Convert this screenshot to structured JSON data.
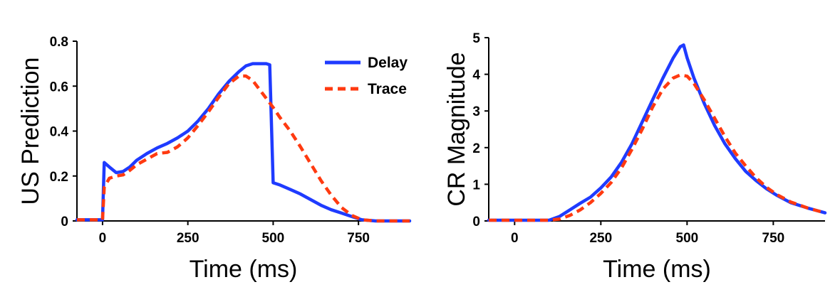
{
  "chart_data": [
    {
      "type": "line",
      "xlabel": "Time (ms)",
      "ylabel": "US Prediction",
      "xlim": [
        -75,
        900
      ],
      "ylim": [
        0,
        0.8
      ],
      "xticks": [
        0,
        250,
        500,
        750
      ],
      "xtick_labels": [
        "0",
        "250",
        "500",
        "750"
      ],
      "yticks": [
        0,
        0.2,
        0.4,
        0.6,
        0.8
      ],
      "ytick_labels": [
        "0",
        "0.2",
        "0.4",
        "0.6",
        "0.8"
      ],
      "grid": false,
      "legend": "top-right",
      "series": [
        {
          "name": "Delay",
          "color": "#1f3bff",
          "style": "solid",
          "x": [
            -75,
            -5,
            0,
            5,
            20,
            40,
            60,
            80,
            100,
            130,
            160,
            190,
            220,
            250,
            280,
            310,
            340,
            370,
            400,
            420,
            440,
            460,
            480,
            490,
            500,
            520,
            550,
            580,
            610,
            640,
            670,
            700,
            730,
            760,
            800,
            900
          ],
          "y": [
            0.005,
            0.005,
            0.005,
            0.26,
            0.24,
            0.215,
            0.22,
            0.24,
            0.27,
            0.3,
            0.325,
            0.345,
            0.37,
            0.4,
            0.445,
            0.5,
            0.565,
            0.62,
            0.665,
            0.69,
            0.7,
            0.7,
            0.7,
            0.695,
            0.17,
            0.16,
            0.14,
            0.12,
            0.095,
            0.07,
            0.05,
            0.035,
            0.02,
            0.005,
            0.0,
            0.0
          ]
        },
        {
          "name": "Trace",
          "color": "#ff3a10",
          "style": "dashed",
          "x": [
            -75,
            -5,
            0,
            5,
            20,
            40,
            60,
            80,
            100,
            130,
            160,
            190,
            220,
            250,
            280,
            310,
            340,
            370,
            400,
            420,
            440,
            460,
            480,
            500,
            520,
            550,
            580,
            610,
            640,
            670,
            700,
            730,
            760,
            800,
            900
          ],
          "y": [
            0.005,
            0.005,
            0.005,
            0.15,
            0.19,
            0.2,
            0.205,
            0.225,
            0.25,
            0.275,
            0.3,
            0.305,
            0.33,
            0.37,
            0.425,
            0.485,
            0.55,
            0.61,
            0.645,
            0.645,
            0.625,
            0.585,
            0.545,
            0.505,
            0.46,
            0.4,
            0.33,
            0.255,
            0.18,
            0.115,
            0.06,
            0.025,
            0.005,
            0.0,
            0.0
          ]
        }
      ]
    },
    {
      "type": "line",
      "xlabel": "Time (ms)",
      "ylabel": "CR Magnitude",
      "xlim": [
        -75,
        900
      ],
      "ylim": [
        0,
        5
      ],
      "xticks": [
        0,
        250,
        500,
        750
      ],
      "xtick_labels": [
        "0",
        "250",
        "500",
        "750"
      ],
      "yticks": [
        0,
        1,
        2,
        3,
        4,
        5
      ],
      "ytick_labels": [
        "0",
        "1",
        "2",
        "3",
        "4",
        "5"
      ],
      "grid": false,
      "legend": "none",
      "series": [
        {
          "name": "Delay",
          "color": "#1f3bff",
          "style": "solid",
          "x": [
            -75,
            100,
            130,
            160,
            190,
            220,
            250,
            280,
            310,
            340,
            370,
            400,
            430,
            460,
            480,
            490,
            500,
            520,
            550,
            580,
            610,
            640,
            670,
            700,
            730,
            760,
            800,
            850,
            900
          ],
          "y": [
            0.02,
            0.02,
            0.12,
            0.3,
            0.48,
            0.65,
            0.9,
            1.2,
            1.6,
            2.1,
            2.7,
            3.3,
            3.9,
            4.45,
            4.75,
            4.8,
            4.45,
            3.9,
            3.2,
            2.6,
            2.1,
            1.7,
            1.35,
            1.1,
            0.88,
            0.7,
            0.5,
            0.35,
            0.22
          ]
        },
        {
          "name": "Trace",
          "color": "#ff3a10",
          "style": "dashed",
          "x": [
            -75,
            100,
            130,
            160,
            190,
            220,
            250,
            280,
            310,
            340,
            370,
            400,
            430,
            460,
            480,
            500,
            520,
            550,
            580,
            610,
            640,
            670,
            700,
            730,
            760,
            800,
            850,
            900
          ],
          "y": [
            0.02,
            0.02,
            0.05,
            0.15,
            0.3,
            0.5,
            0.75,
            1.05,
            1.45,
            1.95,
            2.5,
            3.1,
            3.6,
            3.9,
            3.98,
            3.95,
            3.75,
            3.3,
            2.8,
            2.3,
            1.85,
            1.5,
            1.18,
            0.92,
            0.72,
            0.52,
            0.35,
            0.22
          ]
        }
      ]
    }
  ]
}
